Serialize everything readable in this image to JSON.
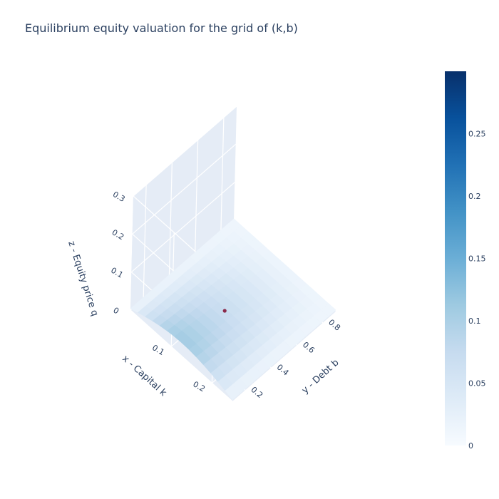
{
  "colors": {
    "plot_bg": "#e5ecf6",
    "grid": "#ffffff",
    "text": "#2a3f5f",
    "marker": "#8b2a4a",
    "colorscale": [
      "#f7fbff",
      "#deebf7",
      "#c6dbef",
      "#9ecae1",
      "#6baed6",
      "#4292c6",
      "#2171b5",
      "#08519c",
      "#08306b"
    ]
  },
  "chart_data": {
    "type": "surface",
    "title": "Equilibrium equity valuation for the grid of (k,b)",
    "x_axis": {
      "label": "x - Capital k",
      "ticks": [
        0.1,
        0.2
      ],
      "tick_labels": [
        "0.1",
        "0.2"
      ],
      "range": [
        0,
        0.25
      ]
    },
    "y_axis": {
      "label": "y - Debt b",
      "ticks": [
        0.2,
        0.4,
        0.6,
        0.8
      ],
      "tick_labels": [
        "0.2",
        "0.4",
        "0.6",
        "0.8"
      ],
      "range": [
        0.1,
        0.9
      ]
    },
    "z_axis": {
      "label": "z - Equity price q",
      "ticks": [
        0,
        0.1,
        0.2,
        0.3
      ],
      "tick_labels": [
        "0",
        "0.1",
        "0.2",
        "0.3"
      ],
      "range": [
        0,
        0.3
      ]
    },
    "colorbar": {
      "ticks": [
        0,
        0.05,
        0.1,
        0.15,
        0.2,
        0.25
      ],
      "tick_labels": [
        "0",
        "0.05",
        "0.1",
        "0.15",
        "0.2",
        "0.25"
      ],
      "range": [
        0,
        0.3
      ]
    },
    "surface_max_z": 0.03,
    "highlighted_point": {
      "k": 0.12,
      "b": 0.45,
      "q": 0.01
    }
  }
}
